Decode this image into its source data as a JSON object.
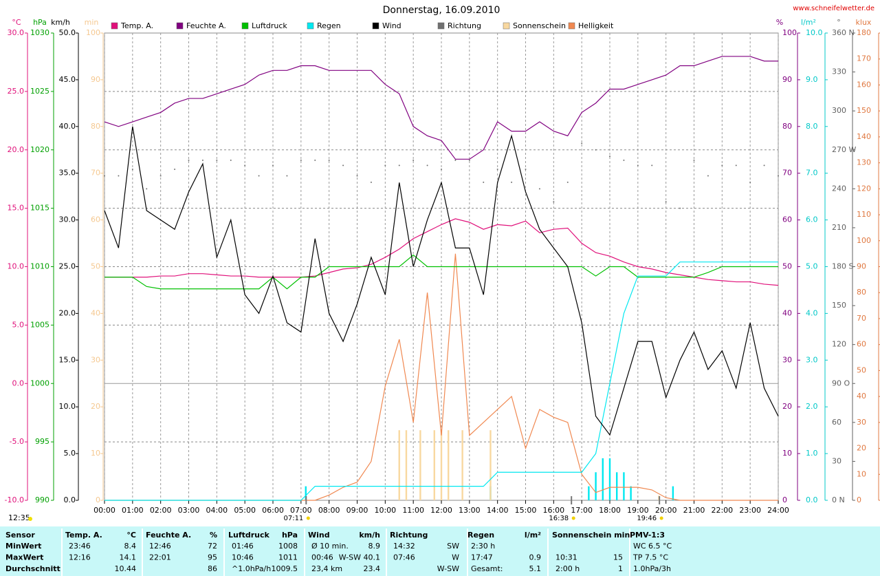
{
  "chart_data": {
    "type": "line",
    "title": "Donnerstag, 16.09.2010",
    "source": "www.schneifelwetter.de",
    "day_length": "12:35",
    "annotations": [
      {
        "text": "07:11",
        "x": 7.183
      },
      {
        "text": "16:38",
        "x": 16.633
      },
      {
        "text": "19:46",
        "x": 19.767
      }
    ],
    "grid": true,
    "x": [
      0,
      0.5,
      1,
      1.5,
      2,
      2.5,
      3,
      3.5,
      4,
      4.5,
      5,
      5.5,
      6,
      6.5,
      7,
      7.5,
      8,
      8.5,
      9,
      9.5,
      10,
      10.5,
      11,
      11.5,
      12,
      12.5,
      13,
      13.5,
      14,
      14.5,
      15,
      15.5,
      16,
      16.5,
      17,
      17.5,
      18,
      18.5,
      19,
      19.5,
      20,
      20.5,
      21,
      21.5,
      22,
      22.5,
      23,
      23.5,
      24
    ],
    "xlim": [
      0,
      24
    ],
    "xticks": [
      {
        "value": 0,
        "label": "00:00"
      },
      {
        "value": 1,
        "label": "01:00"
      },
      {
        "value": 2,
        "label": "02:00"
      },
      {
        "value": 3,
        "label": "03:00"
      },
      {
        "value": 4,
        "label": "04:00"
      },
      {
        "value": 5,
        "label": "05:00"
      },
      {
        "value": 6,
        "label": "06:00"
      },
      {
        "value": 7,
        "label": "07:00"
      },
      {
        "value": 8,
        "label": "08:00"
      },
      {
        "value": 9,
        "label": "09:00"
      },
      {
        "value": 10,
        "label": "10:00"
      },
      {
        "value": 11,
        "label": "11:00"
      },
      {
        "value": 12,
        "label": "12:00"
      },
      {
        "value": 13,
        "label": "13:00"
      },
      {
        "value": 14,
        "label": "14:00"
      },
      {
        "value": 15,
        "label": "15:00"
      },
      {
        "value": 16,
        "label": "16:00"
      },
      {
        "value": 17,
        "label": "17:00"
      },
      {
        "value": 18,
        "label": "18:00"
      },
      {
        "value": 19,
        "label": "19:00"
      },
      {
        "value": 20,
        "label": "20:00"
      },
      {
        "value": 21,
        "label": "21:00"
      },
      {
        "value": 22,
        "label": "22:00"
      },
      {
        "value": 23,
        "label": "23:00"
      },
      {
        "value": 24,
        "label": "24:00"
      }
    ],
    "axes": [
      {
        "label": "°C",
        "side": "left",
        "color": "#e0107a",
        "ylim": [
          -10,
          30
        ],
        "yticks": [
          {
            "value": -10,
            "label": "-10.0"
          },
          {
            "value": -5,
            "label": "-5.0"
          },
          {
            "value": 0,
            "label": "0.0"
          },
          {
            "value": 5,
            "label": "5.0"
          },
          {
            "value": 10,
            "label": "10.0"
          },
          {
            "value": 15,
            "label": "15.0"
          },
          {
            "value": 20,
            "label": "20.0"
          },
          {
            "value": 25,
            "label": "25.0"
          },
          {
            "value": 30,
            "label": "30.0"
          }
        ]
      },
      {
        "label": "hPa",
        "side": "left",
        "color": "#00a000",
        "ylim": [
          990,
          1030
        ],
        "yticks": [
          990,
          995,
          1000,
          1005,
          1010,
          1015,
          1020,
          1025,
          1030
        ]
      },
      {
        "label": "km/h",
        "side": "left",
        "color": "#000000",
        "ylim": [
          0,
          50
        ],
        "yticks": [
          {
            "value": 0,
            "label": "0.0"
          },
          {
            "value": 5,
            "label": "5.0"
          },
          {
            "value": 10,
            "label": "10.0"
          },
          {
            "value": 15,
            "label": "15.0"
          },
          {
            "value": 20,
            "label": "20.0"
          },
          {
            "value": 25,
            "label": "25.0"
          },
          {
            "value": 30,
            "label": "30.0"
          },
          {
            "value": 35,
            "label": "35.0"
          },
          {
            "value": 40,
            "label": "40.0"
          },
          {
            "value": 45,
            "label": "45.0"
          },
          {
            "value": 50,
            "label": "50.0"
          }
        ]
      },
      {
        "label": "min",
        "side": "left",
        "color": "#f5c890",
        "ylim": [
          0,
          100
        ],
        "yticks": [
          0,
          10,
          20,
          30,
          40,
          50,
          60,
          70,
          80,
          90,
          100
        ]
      },
      {
        "label": "%",
        "side": "right",
        "color": "#800080",
        "ylim": [
          0,
          100
        ],
        "yticks": [
          0,
          10,
          20,
          30,
          40,
          50,
          60,
          70,
          80,
          90,
          100
        ]
      },
      {
        "label": "l/m²",
        "side": "right",
        "color": "#00c8c8",
        "ylim": [
          0,
          10
        ],
        "yticks": [
          {
            "value": 0,
            "label": "0.0"
          },
          {
            "value": 1,
            "label": "1.0"
          },
          {
            "value": 2,
            "label": "2.0"
          },
          {
            "value": 3,
            "label": "3.0"
          },
          {
            "value": 4,
            "label": "4.0"
          },
          {
            "value": 5,
            "label": "5.0"
          },
          {
            "value": 6,
            "label": "6.0"
          },
          {
            "value": 7,
            "label": "7.0"
          },
          {
            "value": 8,
            "label": "8.0"
          },
          {
            "value": 9,
            "label": "9.0"
          },
          {
            "value": 10,
            "label": "10.0"
          }
        ]
      },
      {
        "label": "°",
        "side": "right",
        "color": "#606060",
        "ylim": [
          0,
          360
        ],
        "yticks": [
          {
            "value": 0,
            "label": "0 N"
          },
          30,
          60,
          {
            "value": 90,
            "label": "90 O"
          },
          120,
          150,
          {
            "value": 180,
            "label": "180 S"
          },
          210,
          240,
          {
            "value": 270,
            "label": "270 W"
          },
          300,
          330,
          {
            "value": 360,
            "label": "360 N"
          }
        ]
      },
      {
        "label": "klux",
        "side": "right",
        "color": "#e07840",
        "ylim": [
          0,
          180
        ],
        "yticks": [
          0,
          10,
          20,
          30,
          40,
          50,
          60,
          70,
          80,
          90,
          100,
          110,
          120,
          130,
          140,
          150,
          160,
          170,
          180
        ]
      }
    ],
    "series": [
      {
        "name": "Temp. A.",
        "color": "#e0107a",
        "axis": 0,
        "style": "line",
        "values": [
          9.1,
          9.1,
          9.1,
          9.1,
          9.2,
          9.2,
          9.4,
          9.4,
          9.3,
          9.2,
          9.2,
          9.1,
          9.1,
          9.1,
          9.1,
          9.2,
          9.5,
          9.8,
          9.9,
          10.2,
          10.8,
          11.5,
          12.4,
          13.0,
          13.6,
          14.1,
          13.8,
          13.2,
          13.6,
          13.5,
          13.9,
          12.9,
          13.2,
          13.3,
          12.0,
          11.2,
          10.9,
          10.4,
          10.0,
          9.8,
          9.5,
          9.3,
          9.1,
          8.9,
          8.8,
          8.7,
          8.7,
          8.5,
          8.4
        ]
      },
      {
        "name": "Feuchte A.",
        "color": "#800080",
        "axis": 4,
        "style": "line",
        "values": [
          81,
          80,
          81,
          82,
          83,
          85,
          86,
          86,
          87,
          88,
          89,
          91,
          92,
          92,
          93,
          93,
          92,
          92,
          92,
          92,
          89,
          87,
          80,
          78,
          77,
          73,
          73,
          75,
          81,
          79,
          79,
          81,
          79,
          78,
          83,
          85,
          88,
          88,
          89,
          90,
          91,
          93,
          93,
          94,
          95,
          95,
          95,
          94,
          94
        ]
      },
      {
        "name": "Luftdruck",
        "color": "#00c000",
        "axis": 1,
        "style": "line",
        "values": [
          1009.1,
          1009.1,
          1009.1,
          1008.3,
          1008.1,
          1008.1,
          1008.1,
          1008.1,
          1008.1,
          1008.1,
          1008.1,
          1008.1,
          1009.1,
          1008.1,
          1009.1,
          1009.1,
          1010,
          1010,
          1010,
          1010,
          1010,
          1010,
          1011,
          1010,
          1010,
          1010,
          1010,
          1010,
          1010,
          1010,
          1010,
          1010,
          1010,
          1010,
          1010,
          1009.2,
          1010,
          1010,
          1009.1,
          1009.1,
          1009.1,
          1009.1,
          1009.1,
          1009.5,
          1010,
          1010,
          1010,
          1010,
          1010
        ]
      },
      {
        "name": "Regen",
        "color": "#00e8f0",
        "axis": 5,
        "style": "line",
        "values": [
          0,
          0,
          0,
          0,
          0,
          0,
          0,
          0,
          0,
          0,
          0,
          0,
          0,
          0,
          0,
          0.3,
          0.3,
          0.3,
          0.3,
          0.3,
          0.3,
          0.3,
          0.3,
          0.3,
          0.3,
          0.3,
          0.3,
          0.3,
          0.6,
          0.6,
          0.6,
          0.6,
          0.6,
          0.6,
          0.6,
          1.0,
          2.5,
          4.0,
          4.8,
          4.8,
          4.8,
          5.1,
          5.1,
          5.1,
          5.1,
          5.1,
          5.1,
          5.1,
          5.1
        ]
      },
      {
        "name": "Wind",
        "color": "#000000",
        "axis": 2,
        "style": "line",
        "values": [
          31,
          27,
          40,
          31,
          30,
          29,
          33,
          36,
          26,
          30,
          22,
          20,
          24,
          19,
          18,
          28,
          20,
          17,
          21,
          26,
          22,
          34,
          25,
          30,
          34,
          27,
          27,
          22,
          34,
          39,
          33,
          29,
          27,
          25,
          19,
          9,
          7,
          12,
          17,
          17,
          11,
          15,
          18,
          14,
          16,
          12,
          19,
          12,
          9
        ]
      },
      {
        "name": "Richtung",
        "color": "#707070",
        "axis": 6,
        "style": "dots",
        "values": [
          250,
          250,
          255,
          240,
          250,
          255,
          262,
          262,
          262,
          262,
          258,
          250,
          258,
          250,
          262,
          262,
          262,
          258,
          250,
          245,
          258,
          258,
          262,
          258,
          255,
          262,
          262,
          245,
          255,
          245,
          255,
          240,
          230,
          245,
          275,
          270,
          265,
          262,
          258,
          258,
          230,
          225,
          262,
          250,
          258,
          258,
          245,
          258,
          250
        ]
      },
      {
        "name": "Sonnenschein",
        "color": "#f8d8a0",
        "axis": 3,
        "style": "bar",
        "x": [
          10.5,
          10.75,
          11.25,
          11.75,
          12,
          12.25,
          12.75,
          13.75,
          19.75
        ],
        "values": [
          15,
          15,
          15,
          15,
          15,
          15,
          15,
          15,
          1
        ]
      },
      {
        "name": "Helligkeit",
        "color": "#f08850",
        "axis": 7,
        "style": "line",
        "values": [
          0,
          0,
          0,
          0,
          0,
          0,
          0,
          0,
          0,
          0,
          0,
          0,
          0,
          0,
          0,
          0,
          2,
          5,
          7,
          15,
          44,
          62,
          30,
          80,
          25,
          95,
          25,
          30,
          35,
          40,
          20,
          35,
          32,
          30,
          10,
          3,
          5,
          5,
          5,
          4,
          1,
          0,
          0,
          0,
          0,
          0,
          0,
          0,
          0
        ]
      }
    ],
    "rain_bars": {
      "color": "#00e8f0",
      "axis": 5,
      "x": [
        7.17,
        13.75,
        17.25,
        17.5,
        17.75,
        18,
        18.25,
        18.5,
        18.75,
        20.25
      ],
      "values": [
        0.3,
        0.3,
        0.3,
        0.6,
        0.9,
        0.9,
        0.6,
        0.6,
        0.3,
        0.3
      ]
    }
  },
  "table": {
    "header": [
      "Sensor",
      "Temp. A.",
      "°C",
      "Feuchte A.",
      "%",
      "Luftdruck",
      "hPa",
      "Wind",
      "km/h",
      "Richtung",
      null,
      "Regen",
      "l/m²",
      "Sonnenschein min",
      null,
      "PMV-1:3"
    ],
    "rows": [
      [
        "MinWert",
        "23:46",
        "8.4",
        "12:46",
        "72",
        "01:46",
        "1008",
        "Ø 10 min.",
        "8.9",
        "14:32",
        "SW",
        "2:30 h",
        null,
        null,
        null,
        "WC 6.5 °C"
      ],
      [
        "MaxWert",
        "12:16",
        "14.1",
        "22:01",
        "95",
        "10:46",
        "1011",
        "00:46",
        "W-SW 40.1",
        "07:46",
        "W",
        "17:47",
        "0.9",
        "10:31",
        "15",
        "TP 7.5 °C"
      ],
      [
        "Durchschnitt",
        null,
        "10.44",
        null,
        "86",
        "^1.0hPa/h",
        "1009.5",
        "23,4 km",
        "23.4",
        null,
        "W-SW",
        "Gesamt:",
        "5.1",
        "2:00 h",
        "1",
        "1.0hPa/3h"
      ]
    ]
  }
}
